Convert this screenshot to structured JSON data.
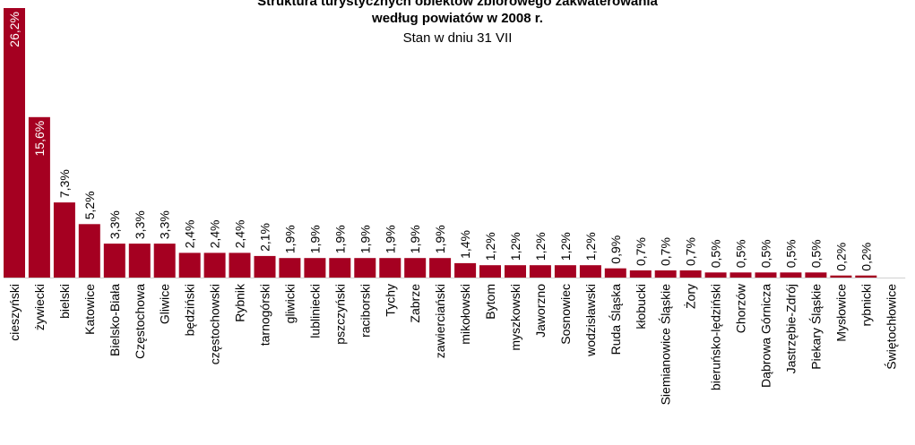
{
  "chart_data": {
    "type": "bar",
    "title": "Struktura turystycznych obiektów zbiorowego zakwaterowania",
    "subtitle": "według powiatów w 2008 r.",
    "note": "Stan w dniu 31 VII",
    "bar_color": "#a50021",
    "ylim": [
      0,
      26.2
    ],
    "categories": [
      "cieszyński",
      "żywiecki",
      "bielski",
      "Katowice",
      "Bielsko-Biała",
      "Częstochowa",
      "Gliwice",
      "będziński",
      "częstochowski",
      "Rybnik",
      "tarnogórski",
      "gliwicki",
      "lubliniecki",
      "pszczyński",
      "raciborski",
      "Tychy",
      "Zabrze",
      "zawierciański",
      "mikołowski",
      "Bytom",
      "myszkowski",
      "Jaworzno",
      "Sosnowiec",
      "wodzisławski",
      "Ruda Śląska",
      "kłobucki",
      "Siemianowice Śląskie",
      "Żory",
      "bieruńsko-lędziński",
      "Chorzów",
      "Dąbrowa Górnicza",
      "Jastrzębie-Zdrój",
      "Piekary Śląskie",
      "Mysłowice",
      "rybnicki",
      "Świętochłowice"
    ],
    "values": [
      26.2,
      15.6,
      7.3,
      5.2,
      3.3,
      3.3,
      3.3,
      2.4,
      2.4,
      2.4,
      2.1,
      1.9,
      1.9,
      1.9,
      1.9,
      1.9,
      1.9,
      1.9,
      1.4,
      1.2,
      1.2,
      1.2,
      1.2,
      1.2,
      0.9,
      0.7,
      0.7,
      0.7,
      0.5,
      0.5,
      0.5,
      0.5,
      0.5,
      0.2,
      0.2,
      0
    ],
    "labels": [
      "26,2%",
      "15,6%",
      "7,3%",
      "5,2%",
      "3,3%",
      "3,3%",
      "3,3%",
      "2,4%",
      "2,4%",
      "2,4%",
      "2,1%",
      "1,9%",
      "1,9%",
      "1,9%",
      "1,9%",
      "1,9%",
      "1,9%",
      "1,9%",
      "1,4%",
      "1,2%",
      "1,2%",
      "1,2%",
      "1,2%",
      "1,2%",
      "0,9%",
      "0,7%",
      "0,7%",
      "0,7%",
      "0,5%",
      "0,5%",
      "0,5%",
      "0,5%",
      "0,5%",
      "0,2%",
      "0,2%",
      ""
    ]
  }
}
